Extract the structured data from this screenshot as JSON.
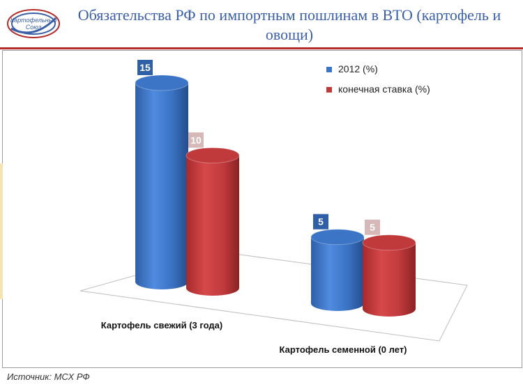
{
  "header": {
    "title": "Обязательства РФ по импортным пошлинам в ВТО (картофель и овощи)",
    "logo_text_line1": "Картофельный",
    "logo_text_line2": "Союз"
  },
  "source": "Источник: МСХ РФ",
  "chart_data": {
    "type": "bar",
    "categories": [
      "Картофель свежий (3 года)",
      "Картофель семенной (0 лет)"
    ],
    "series": [
      {
        "name": "2012 (%)",
        "values": [
          15,
          5
        ],
        "color": "#3c75c6"
      },
      {
        "name": "конечная  ставка (%)",
        "values": [
          10,
          5
        ],
        "color": "#c0393b"
      }
    ],
    "ylim": [
      0,
      16
    ],
    "grid": false,
    "legend": "top-right"
  }
}
